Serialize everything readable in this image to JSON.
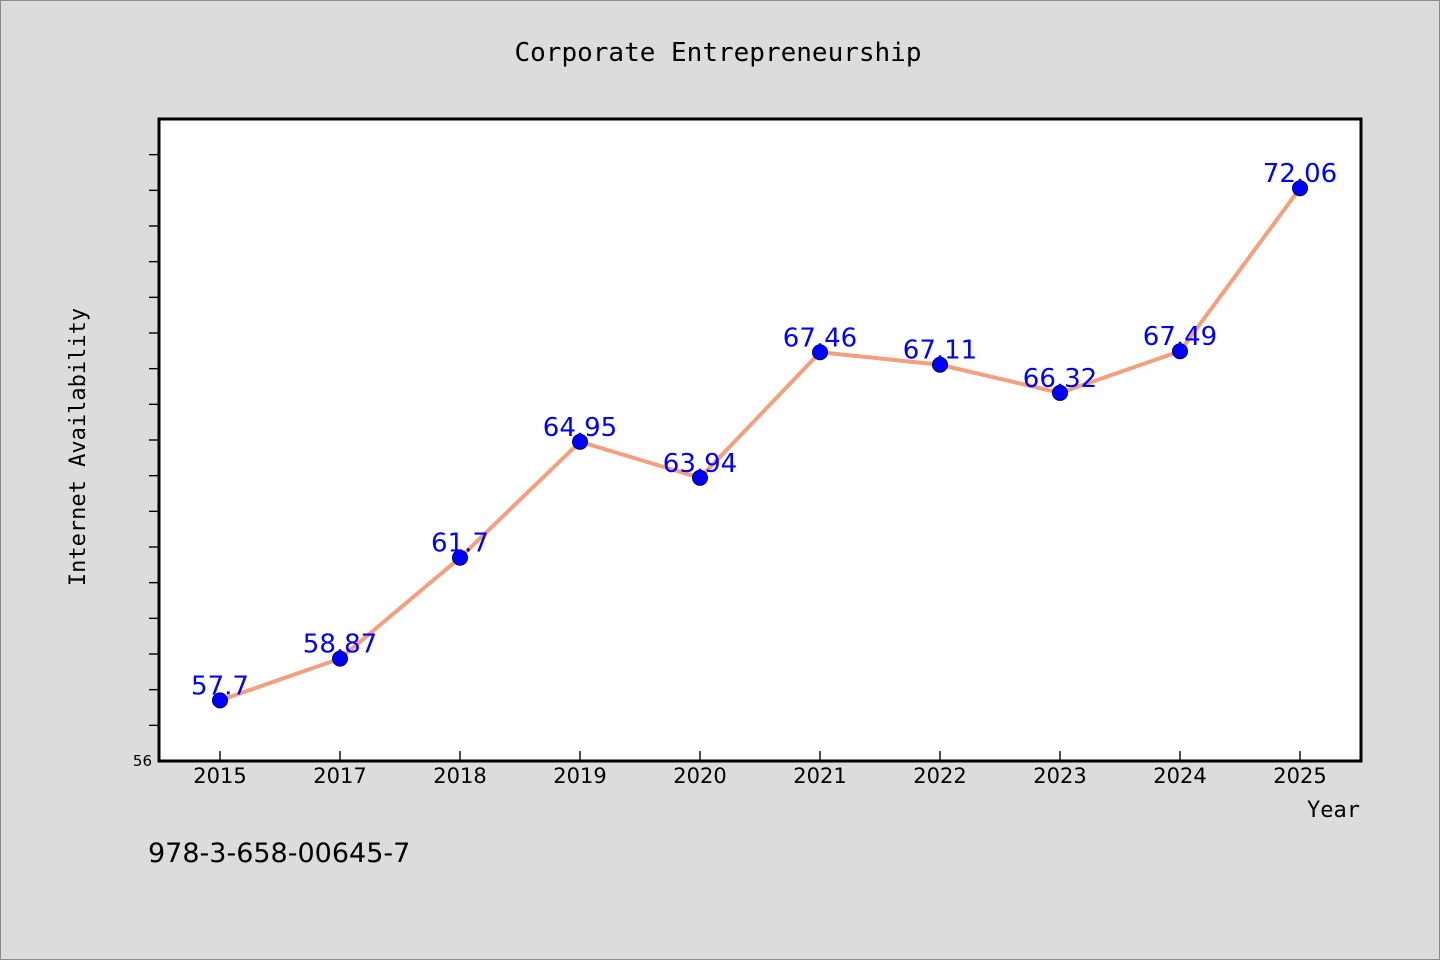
{
  "chart_data": {
    "type": "line",
    "title": "Corporate Entrepreneurship",
    "xlabel": "Year",
    "ylabel": "Internet Availability",
    "categories": [
      "2015",
      "2017",
      "2018",
      "2019",
      "2020",
      "2021",
      "2022",
      "2023",
      "2024",
      "2025"
    ],
    "series": [
      {
        "values": [
          57.7,
          58.87,
          61.7,
          64.95,
          63.94,
          67.46,
          67.11,
          66.32,
          67.49,
          72.06
        ],
        "data_labels": [
          "57.7",
          "58.87",
          "61.7",
          "64.95",
          "63.94",
          "67.46",
          "67.11",
          "66.32",
          "67.49",
          "72.06"
        ]
      }
    ],
    "ylim": [
      56,
      74
    ],
    "y_tick_labels": [
      "56"
    ],
    "grid": false,
    "legend": "none",
    "colors": {
      "line": "#f4a07f",
      "marker": "#0000ff",
      "data_label": "#0000ff",
      "plot_background": "#ffffff",
      "page_background": "#dcdcdc"
    }
  },
  "footer": {
    "isbn": "978-3-658-00645-7"
  }
}
